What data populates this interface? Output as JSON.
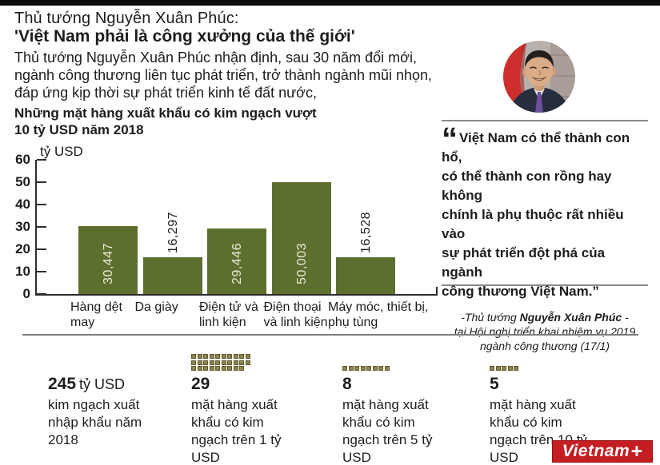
{
  "header": {
    "kicker": "Thủ tướng Nguyễn Xuân Phúc:",
    "headline": "'Việt Nam phải là công xưởng của thế giới'",
    "lede": "Thủ tướng Nguyễn Xuân Phúc nhận định, sau 30 năm đổi mới,\nngành công thương liên tục phát triển, trở thành ngành mũi nhọn,\nđáp ứng kịp thời sự phát triển kinh tế đất nước,"
  },
  "chart_data": {
    "type": "bar",
    "title": "Những mặt hàng xuất khẩu có kim ngạch vượt 10 tỷ USD năm 2018",
    "title_wrap": "Những mặt hàng xuất khẩu có kim ngạch vượt\n10 tỷ USD năm 2018",
    "ylabel": "tỷ USD",
    "categories": [
      "Hàng dệt\nmay",
      "Da giày",
      "Điện tử và\nlinh kiện",
      "Điện thoại\nvà linh kiện",
      "Máy móc, thiết bị,\nphụ tùng"
    ],
    "values": [
      30.447,
      16.297,
      29.446,
      50.003,
      16.528
    ],
    "value_labels": [
      "30,447",
      "16,297",
      "29,446",
      "50,003",
      "16,528"
    ],
    "label_inside": [
      true,
      false,
      true,
      true,
      false
    ],
    "ylim": [
      0,
      60
    ],
    "yticks": [
      60,
      50,
      40,
      30,
      20,
      10,
      0
    ],
    "grid": false,
    "legend": false,
    "bar_color": "#5d6f2e"
  },
  "quote": {
    "mark": "“",
    "text": "Việt Nam có thể thành con hổ,\ncó thể thành con rồng hay không\nchính là phụ thuộc rất nhiều vào\nsự phát triển đột phá của ngành\ncông thương Việt Nam.”",
    "attr_prefix": "-Thủ tướng ",
    "attr_name": "Nguyễn Xuân Phúc",
    "attr_suffix": " -",
    "attr_detail": "tại Hội nghị triển khai nhiệm vụ 2019\nngành công thương (17/1)"
  },
  "stats": [
    {
      "number": "245",
      "number_suffix": "tỷ USD",
      "text": "kim ngạch xuất\nnhập khẩu năm\n2018",
      "icon_count": 0
    },
    {
      "number": "29",
      "text": "mặt hàng xuất\nkhẩu có kim\nngạch trên 1 tỷ\nUSD",
      "icon_count": 29
    },
    {
      "number": "8",
      "text": "mặt hàng xuất\nkhẩu có kim\nngạch trên 5 tỷ\nUSD",
      "icon_count": 8
    },
    {
      "number": "5",
      "text": "mặt hàng xuất\nkhẩu có kim\nngạch trên 10 tỷ\nUSD",
      "icon_count": 5
    }
  ],
  "logo": {
    "text": "Vietnam",
    "plus": "+"
  },
  "colors": {
    "bar": "#5d6f2e",
    "square": "#8c8150",
    "logo_red": "#c41e22",
    "text": "#1d1d1b"
  }
}
